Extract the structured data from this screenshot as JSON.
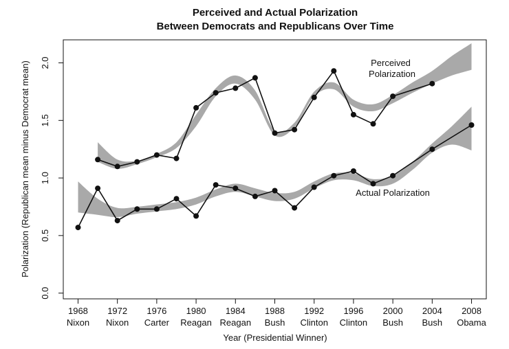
{
  "chart_data": {
    "type": "line",
    "title": [
      "Perceived and Actual Polarization",
      "Between Democrats and Republicans Over Time"
    ],
    "xlabel": "Year (Presidential Winner)",
    "ylabel": "Polarization (Republican mean minus Democrat mean)",
    "xlim": [
      1966.5,
      2009.5
    ],
    "ylim": [
      -0.05,
      2.2
    ],
    "x_ticks": [
      {
        "year": 1968,
        "label": "1968",
        "winner": "Nixon"
      },
      {
        "year": 1972,
        "label": "1972",
        "winner": "Nixon"
      },
      {
        "year": 1976,
        "label": "1976",
        "winner": "Carter"
      },
      {
        "year": 1980,
        "label": "1980",
        "winner": "Reagan"
      },
      {
        "year": 1984,
        "label": "1984",
        "winner": "Reagan"
      },
      {
        "year": 1988,
        "label": "1988",
        "winner": "Bush"
      },
      {
        "year": 1992,
        "label": "1992",
        "winner": "Clinton"
      },
      {
        "year": 1996,
        "label": "1996",
        "winner": "Clinton"
      },
      {
        "year": 2000,
        "label": "2000",
        "winner": "Bush"
      },
      {
        "year": 2004,
        "label": "2004",
        "winner": "Bush"
      },
      {
        "year": 2008,
        "label": "2008",
        "winner": "Obama"
      }
    ],
    "y_ticks": [
      {
        "value": 0.0,
        "label": "0.0"
      },
      {
        "value": 0.5,
        "label": "0.5"
      },
      {
        "value": 1.0,
        "label": "1.0"
      },
      {
        "value": 1.5,
        "label": "1.5"
      },
      {
        "value": 2.0,
        "label": "2.0"
      }
    ],
    "series": [
      {
        "name": "Perceived Polarization",
        "annotation": [
          "Perceived",
          "Polarization"
        ],
        "points": [
          {
            "x": 1970,
            "y": 1.16
          },
          {
            "x": 1972,
            "y": 1.1
          },
          {
            "x": 1974,
            "y": 1.14
          },
          {
            "x": 1976,
            "y": 1.2
          },
          {
            "x": 1978,
            "y": 1.17
          },
          {
            "x": 1980,
            "y": 1.61
          },
          {
            "x": 1982,
            "y": 1.74
          },
          {
            "x": 1984,
            "y": 1.78
          },
          {
            "x": 1986,
            "y": 1.87
          },
          {
            "x": 1988,
            "y": 1.39
          },
          {
            "x": 1990,
            "y": 1.42
          },
          {
            "x": 1992,
            "y": 1.7
          },
          {
            "x": 1994,
            "y": 1.93
          },
          {
            "x": 1996,
            "y": 1.55
          },
          {
            "x": 1998,
            "y": 1.47
          },
          {
            "x": 2000,
            "y": 1.71
          },
          {
            "x": 2004,
            "y": 1.82
          }
        ],
        "band_lower": [
          {
            "x": 1970,
            "y": 1.14
          },
          {
            "x": 1972,
            "y": 1.08
          },
          {
            "x": 1974,
            "y": 1.12
          },
          {
            "x": 1976,
            "y": 1.18
          },
          {
            "x": 1978,
            "y": 1.26
          },
          {
            "x": 1980,
            "y": 1.45
          },
          {
            "x": 1982,
            "y": 1.71
          },
          {
            "x": 1984,
            "y": 1.82
          },
          {
            "x": 1986,
            "y": 1.68
          },
          {
            "x": 1988,
            "y": 1.37
          },
          {
            "x": 1990,
            "y": 1.44
          },
          {
            "x": 1992,
            "y": 1.71
          },
          {
            "x": 1994,
            "y": 1.77
          },
          {
            "x": 1996,
            "y": 1.62
          },
          {
            "x": 1998,
            "y": 1.58
          },
          {
            "x": 2000,
            "y": 1.65
          },
          {
            "x": 2002,
            "y": 1.74
          },
          {
            "x": 2004,
            "y": 1.82
          },
          {
            "x": 2006,
            "y": 1.89
          },
          {
            "x": 2008,
            "y": 1.94
          }
        ],
        "band_upper": [
          {
            "x": 1970,
            "y": 1.31
          },
          {
            "x": 1972,
            "y": 1.16
          },
          {
            "x": 1974,
            "y": 1.15
          },
          {
            "x": 1976,
            "y": 1.21
          },
          {
            "x": 1978,
            "y": 1.31
          },
          {
            "x": 1980,
            "y": 1.55
          },
          {
            "x": 1982,
            "y": 1.78
          },
          {
            "x": 1984,
            "y": 1.89
          },
          {
            "x": 1986,
            "y": 1.76
          },
          {
            "x": 1988,
            "y": 1.41
          },
          {
            "x": 1990,
            "y": 1.48
          },
          {
            "x": 1992,
            "y": 1.75
          },
          {
            "x": 1994,
            "y": 1.83
          },
          {
            "x": 1996,
            "y": 1.68
          },
          {
            "x": 1998,
            "y": 1.64
          },
          {
            "x": 2000,
            "y": 1.72
          },
          {
            "x": 2002,
            "y": 1.83
          },
          {
            "x": 2004,
            "y": 1.93
          },
          {
            "x": 2006,
            "y": 2.06
          },
          {
            "x": 2008,
            "y": 2.17
          }
        ]
      },
      {
        "name": "Actual Polarization",
        "annotation": [
          "Actual Polarization"
        ],
        "points": [
          {
            "x": 1968,
            "y": 0.57
          },
          {
            "x": 1970,
            "y": 0.91
          },
          {
            "x": 1972,
            "y": 0.63
          },
          {
            "x": 1974,
            "y": 0.73
          },
          {
            "x": 1976,
            "y": 0.73
          },
          {
            "x": 1978,
            "y": 0.82
          },
          {
            "x": 1980,
            "y": 0.67
          },
          {
            "x": 1982,
            "y": 0.94
          },
          {
            "x": 1984,
            "y": 0.91
          },
          {
            "x": 1986,
            "y": 0.84
          },
          {
            "x": 1988,
            "y": 0.89
          },
          {
            "x": 1990,
            "y": 0.74
          },
          {
            "x": 1992,
            "y": 0.92
          },
          {
            "x": 1994,
            "y": 1.02
          },
          {
            "x": 1996,
            "y": 1.06
          },
          {
            "x": 1998,
            "y": 0.95
          },
          {
            "x": 2000,
            "y": 1.02
          },
          {
            "x": 2004,
            "y": 1.25
          },
          {
            "x": 2008,
            "y": 1.46
          }
        ],
        "band_lower": [
          {
            "x": 1968,
            "y": 0.7
          },
          {
            "x": 1970,
            "y": 0.68
          },
          {
            "x": 1972,
            "y": 0.66
          },
          {
            "x": 1974,
            "y": 0.69
          },
          {
            "x": 1976,
            "y": 0.71
          },
          {
            "x": 1978,
            "y": 0.73
          },
          {
            "x": 1980,
            "y": 0.77
          },
          {
            "x": 1982,
            "y": 0.84
          },
          {
            "x": 1984,
            "y": 0.88
          },
          {
            "x": 1986,
            "y": 0.84
          },
          {
            "x": 1988,
            "y": 0.8
          },
          {
            "x": 1990,
            "y": 0.82
          },
          {
            "x": 1992,
            "y": 0.91
          },
          {
            "x": 1994,
            "y": 0.98
          },
          {
            "x": 1996,
            "y": 0.98
          },
          {
            "x": 1998,
            "y": 0.93
          },
          {
            "x": 2000,
            "y": 0.95
          },
          {
            "x": 2002,
            "y": 1.07
          },
          {
            "x": 2004,
            "y": 1.22
          },
          {
            "x": 2006,
            "y": 1.29
          },
          {
            "x": 2008,
            "y": 1.24
          }
        ],
        "band_upper": [
          {
            "x": 1968,
            "y": 0.97
          },
          {
            "x": 1970,
            "y": 0.82
          },
          {
            "x": 1972,
            "y": 0.74
          },
          {
            "x": 1974,
            "y": 0.75
          },
          {
            "x": 1976,
            "y": 0.77
          },
          {
            "x": 1978,
            "y": 0.79
          },
          {
            "x": 1980,
            "y": 0.83
          },
          {
            "x": 1982,
            "y": 0.9
          },
          {
            "x": 1984,
            "y": 0.95
          },
          {
            "x": 1986,
            "y": 0.91
          },
          {
            "x": 1988,
            "y": 0.87
          },
          {
            "x": 1990,
            "y": 0.88
          },
          {
            "x": 1992,
            "y": 0.97
          },
          {
            "x": 1994,
            "y": 1.04
          },
          {
            "x": 1996,
            "y": 1.04
          },
          {
            "x": 1998,
            "y": 0.99
          },
          {
            "x": 2000,
            "y": 1.02
          },
          {
            "x": 2002,
            "y": 1.14
          },
          {
            "x": 2004,
            "y": 1.3
          },
          {
            "x": 2006,
            "y": 1.45
          },
          {
            "x": 2008,
            "y": 1.62
          }
        ]
      }
    ]
  }
}
